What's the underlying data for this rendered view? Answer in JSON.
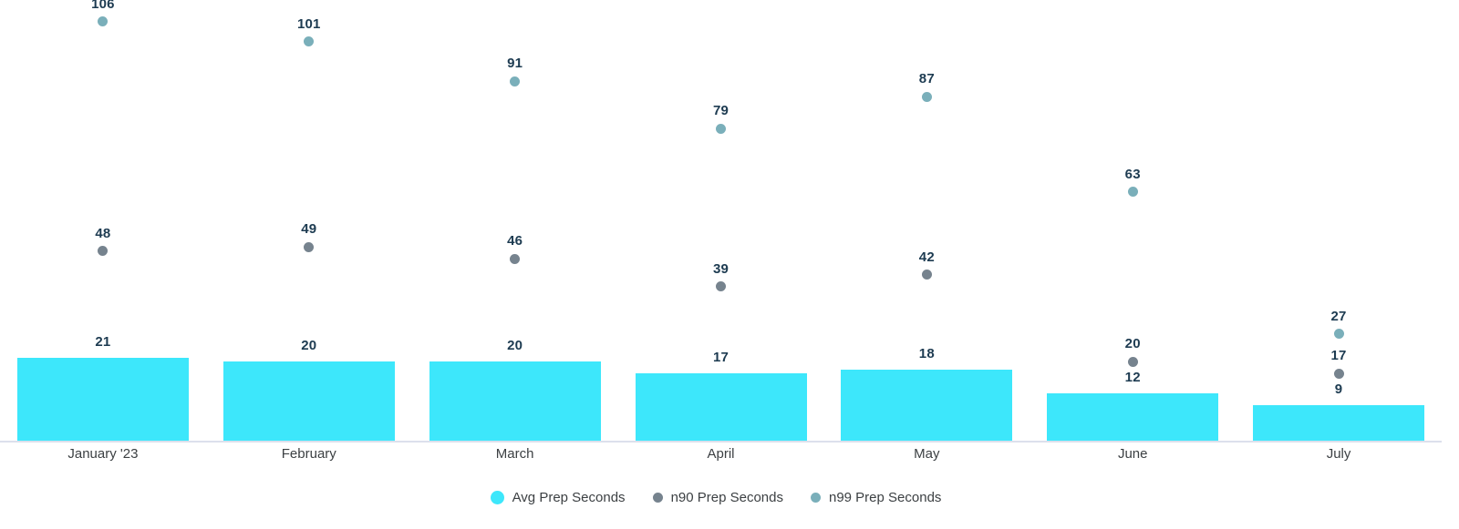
{
  "chart_data": {
    "type": "bar",
    "title": "",
    "xlabel": "",
    "ylabel": "",
    "categories": [
      "January '23",
      "February",
      "March",
      "April",
      "May",
      "June",
      "July"
    ],
    "series": [
      {
        "name": "Avg Prep Seconds",
        "mark": "bar",
        "color": "#3DE7FB",
        "values": [
          21,
          20,
          20,
          17,
          18,
          12,
          9
        ]
      },
      {
        "name": "n90 Prep Seconds",
        "mark": "point",
        "color": "#76838E",
        "values": [
          48,
          49,
          46,
          39,
          42,
          20,
          17
        ]
      },
      {
        "name": "n99 Prep Seconds",
        "mark": "point",
        "color": "#7AAFBA",
        "values": [
          106,
          101,
          91,
          79,
          87,
          63,
          27
        ]
      }
    ],
    "ylim": [
      0,
      112
    ],
    "grid": false,
    "y_axis_shown": false,
    "value_labels_shown": true,
    "legend_position": "bottom",
    "colors": {
      "value_label": "#1D3B51",
      "axis_label": "#3C4043",
      "legend_label": "#3C4043",
      "axis_line": "#DCE0EC",
      "background": "#FFFFFF"
    }
  }
}
